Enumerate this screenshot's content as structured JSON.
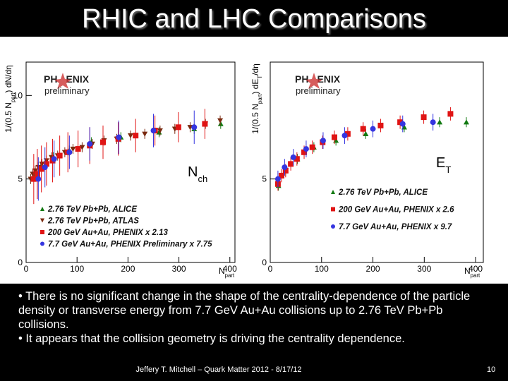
{
  "title": "RHIC and LHC Comparisons",
  "chart_data": [
    {
      "type": "scatter",
      "ylabel_parts": [
        "1/(0.5 N",
        "part",
        ") dN/dη"
      ],
      "xlabel_parts": [
        "N",
        "part"
      ],
      "tag_parts": [
        "N",
        "ch"
      ],
      "logo_parts": [
        "PH",
        "ENIX"
      ],
      "logo_sub": "preliminary",
      "xlim": [
        0,
        410
      ],
      "ylim": [
        0,
        12
      ],
      "xticks": [
        0,
        100,
        200,
        300,
        400
      ],
      "yticks": [
        0,
        5,
        10
      ],
      "series": [
        {
          "name": "2.76 TeV Pb+Pb, ALICE",
          "color": "#127a12",
          "marker": "triangle",
          "x": [
            382,
            330,
            261,
            186,
            128,
            85,
            53,
            30,
            16
          ],
          "values": [
            8.3,
            8.0,
            7.8,
            7.5,
            7.2,
            6.7,
            6.3,
            5.8,
            5.2
          ],
          "errors": [
            0.3,
            0.3,
            0.3,
            0.3,
            0.3,
            0.3,
            0.3,
            0.3,
            0.3
          ]
        },
        {
          "name": "2.76 TeV Pb+Pb, ATLAS",
          "color": "#7a2a10",
          "marker": "down",
          "x": [
            381,
            352,
            322,
            292,
            263,
            233,
            205,
            178,
            153,
            130,
            110,
            92,
            76,
            62,
            50,
            40,
            31,
            24,
            18,
            13,
            9
          ],
          "values": [
            8.5,
            8.3,
            8.1,
            8.0,
            7.9,
            7.7,
            7.6,
            7.4,
            7.3,
            7.1,
            6.9,
            6.8,
            6.6,
            6.4,
            6.3,
            6.1,
            5.9,
            5.7,
            5.5,
            5.3,
            5.0
          ],
          "errors": [
            0.3,
            0.3,
            0.3,
            0.3,
            0.3,
            0.3,
            0.3,
            0.3,
            0.3,
            0.3,
            0.3,
            0.3,
            0.3,
            0.3,
            0.3,
            0.3,
            0.3,
            0.3,
            0.3,
            0.3,
            0.3
          ]
        },
        {
          "name": "200 GeV Au+Au, PHENIX x 2.13",
          "color": "#e01414",
          "marker": "square",
          "x": [
            351,
            299,
            253,
            215,
            181,
            151,
            125,
            102,
            82,
            66,
            52,
            40,
            30,
            22,
            15
          ],
          "values": [
            8.3,
            8.1,
            7.9,
            7.6,
            7.4,
            7.2,
            7.0,
            6.8,
            6.6,
            6.4,
            6.1,
            5.9,
            5.6,
            5.3,
            5.0
          ],
          "errors": [
            0.9,
            0.9,
            0.9,
            1.0,
            1.0,
            1.0,
            1.1,
            1.1,
            1.2,
            1.2,
            1.3,
            1.3,
            1.4,
            1.5,
            1.5
          ]
        },
        {
          "name": "7.7 GeV Au+Au, PHENIX Preliminary x 7.75",
          "color": "#3535e0",
          "marker": "circle",
          "x": [
            330,
            250,
            182,
            125,
            85,
            55,
            37,
            24
          ],
          "values": [
            8.1,
            7.9,
            7.5,
            7.1,
            6.6,
            6.2,
            5.7,
            5.0
          ],
          "errors": [
            1.0,
            1.0,
            1.0,
            1.0,
            1.0,
            1.1,
            1.2,
            1.3
          ]
        }
      ]
    },
    {
      "type": "scatter",
      "ylabel_parts": [
        "1/(0.5 N",
        "part",
        ") dE",
        "T",
        "/dη"
      ],
      "xlabel_parts": [
        "N",
        "part"
      ],
      "tag_parts": [
        "E",
        "T"
      ],
      "logo_parts": [
        "PH",
        "ENIX"
      ],
      "logo_sub": "preliminary",
      "xlim": [
        0,
        415
      ],
      "ylim": [
        0,
        12
      ],
      "xticks": [
        0,
        100,
        200,
        300,
        400
      ],
      "yticks": [
        0,
        5
      ],
      "series": [
        {
          "name": "2.76 TeV Pb+Pb, ALICE",
          "color": "#127a12",
          "marker": "triangle",
          "x": [
            382,
            330,
            261,
            186,
            128,
            85,
            53,
            30,
            16
          ],
          "values": [
            8.4,
            8.4,
            8.1,
            7.7,
            7.3,
            6.9,
            6.2,
            5.5,
            4.6
          ],
          "errors": [
            0.3,
            0.3,
            0.3,
            0.3,
            0.3,
            0.3,
            0.3,
            0.3,
            0.3
          ]
        },
        {
          "name": "200 GeV Au+Au, PHENIX x 2.6",
          "color": "#e01414",
          "marker": "square",
          "x": [
            351,
            299,
            253,
            215,
            181,
            151,
            125,
            102,
            82,
            66,
            52,
            40,
            30,
            22,
            15
          ],
          "values": [
            8.9,
            8.7,
            8.4,
            8.2,
            8.0,
            7.7,
            7.5,
            7.2,
            6.9,
            6.6,
            6.2,
            5.9,
            5.5,
            5.2,
            4.7
          ],
          "errors": [
            0.4,
            0.4,
            0.4,
            0.4,
            0.4,
            0.4,
            0.4,
            0.4,
            0.4,
            0.4,
            0.4,
            0.4,
            0.4,
            0.4,
            0.4
          ]
        },
        {
          "name": "7.7 GeV Au+Au, PHENIX x 9.7",
          "color": "#3535e0",
          "marker": "circle",
          "x": [
            317,
            258,
            200,
            145,
            103,
            70,
            45,
            28,
            15
          ],
          "values": [
            8.4,
            8.3,
            8.0,
            7.6,
            7.3,
            6.8,
            6.3,
            5.7,
            5.0
          ],
          "errors": [
            0.5,
            0.5,
            0.5,
            0.5,
            0.5,
            0.5,
            0.5,
            0.5,
            0.5
          ]
        }
      ]
    }
  ],
  "bullets": [
    "There is no significant change in the shape of the centrality-dependence of the particle density or transverse energy from 7.7 GeV Au+Au collisions up to 2.76 TeV Pb+Pb collisions.",
    "It appears that the collision geometry is driving the centrality dependence."
  ],
  "footer": "Jeffery T. Mitchell – Quark Matter 2012 - 8/17/12",
  "page_number": "10"
}
